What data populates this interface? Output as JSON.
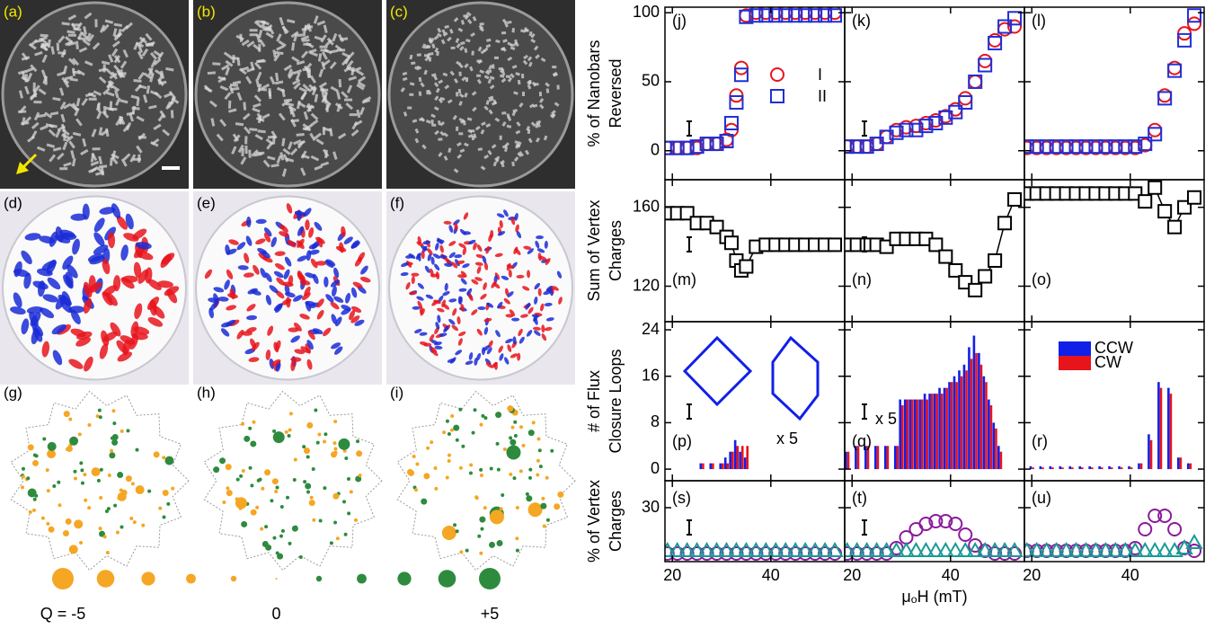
{
  "images": {
    "labels": [
      "(a)",
      "(b)",
      "(c)",
      "(d)",
      "(e)",
      "(f)"
    ]
  },
  "maps": {
    "labels": [
      "(g)",
      "(h)",
      "(i)"
    ],
    "legend": {
      "q": [
        -5,
        -4,
        -3,
        -2,
        -1,
        0,
        1,
        2,
        3,
        4,
        5
      ],
      "labels": [
        "Q = -5",
        "0",
        "+5"
      ]
    }
  },
  "chart_data": [
    {
      "type": "scatter",
      "label": "(j)",
      "ylabel": [
        "% of Nanobars",
        "Reversed"
      ],
      "x": [
        19,
        21,
        23,
        25,
        27,
        29,
        31,
        32,
        33,
        34,
        35,
        37,
        39,
        41,
        43,
        45,
        47,
        49,
        51,
        53
      ],
      "series": [
        {
          "name": "I",
          "color": "#e8141c",
          "marker": "circle",
          "values": [
            2,
            2,
            2,
            2,
            5,
            5,
            8,
            15,
            40,
            60,
            98,
            100,
            100,
            100,
            100,
            100,
            100,
            100,
            100,
            100
          ]
        },
        {
          "name": "II",
          "color": "#1f2fd6",
          "marker": "square",
          "values": [
            2,
            2,
            2,
            3,
            5,
            5,
            7,
            20,
            35,
            55,
            97,
            98,
            98,
            98,
            98,
            98,
            98,
            98,
            98,
            98
          ]
        }
      ],
      "xlim": [
        18.5,
        55
      ],
      "xticks": [
        20,
        40
      ],
      "ylim": [
        -21,
        104
      ],
      "yticks": [
        0,
        50,
        100
      ]
    },
    {
      "type": "scatter",
      "label": "(k)",
      "x": [
        19,
        21,
        23,
        25,
        27,
        29,
        31,
        33,
        35,
        37,
        39,
        41,
        43,
        45,
        47,
        49,
        51,
        53
      ],
      "series": [
        {
          "color": "#e8141c",
          "marker": "circle",
          "values": [
            3,
            3,
            3,
            5,
            10,
            15,
            17,
            18,
            20,
            22,
            25,
            30,
            38,
            50,
            65,
            80,
            88,
            90
          ]
        },
        {
          "color": "#1f2fd6",
          "marker": "square",
          "values": [
            3,
            3,
            3,
            5,
            10,
            13,
            15,
            15,
            18,
            20,
            24,
            28,
            35,
            50,
            62,
            78,
            90,
            96
          ]
        }
      ],
      "xlim": [
        18.5,
        55
      ],
      "xticks": [
        20,
        40
      ],
      "ylim": [
        -21,
        104
      ],
      "yticks": [
        0,
        50,
        100
      ]
    },
    {
      "type": "scatter",
      "label": "(l)",
      "x": [
        19,
        21,
        23,
        25,
        27,
        29,
        31,
        33,
        35,
        37,
        39,
        41,
        43,
        45,
        47,
        49,
        51,
        53
      ],
      "series": [
        {
          "color": "#e8141c",
          "marker": "circle",
          "values": [
            2,
            2,
            2,
            2,
            2,
            2,
            2,
            2,
            2,
            2,
            2,
            2,
            4,
            15,
            40,
            60,
            85,
            92
          ]
        },
        {
          "color": "#1f2fd6",
          "marker": "square",
          "values": [
            3,
            3,
            3,
            3,
            3,
            3,
            3,
            3,
            3,
            3,
            3,
            3,
            5,
            12,
            38,
            58,
            80,
            98
          ]
        }
      ],
      "xlim": [
        18.5,
        55
      ],
      "xticks": [
        20,
        40
      ],
      "ylim": [
        -21,
        104
      ],
      "yticks": [
        0,
        50,
        100
      ]
    },
    {
      "type": "line",
      "label": "(m)",
      "ylabel": [
        "Sum of Vertex",
        "Charges"
      ],
      "x": [
        19,
        21,
        23,
        25,
        27,
        29,
        31,
        32,
        33,
        34,
        35,
        37,
        39,
        41,
        43,
        45,
        47,
        49,
        51,
        53
      ],
      "series": [
        {
          "color": "#000000",
          "marker": "square",
          "values": [
            157,
            157,
            157,
            152,
            152,
            150,
            145,
            142,
            133,
            128,
            130,
            140,
            141,
            141,
            141,
            141,
            141,
            141,
            141,
            141
          ]
        }
      ],
      "xlim": [
        18.5,
        55
      ],
      "xticks": [
        20,
        40
      ],
      "ylim": [
        102,
        174
      ],
      "yticks": [
        120,
        160
      ]
    },
    {
      "type": "line",
      "label": "(n)",
      "x": [
        19,
        21,
        23,
        25,
        27,
        29,
        31,
        33,
        35,
        37,
        39,
        41,
        43,
        45,
        47,
        49,
        51,
        53
      ],
      "series": [
        {
          "color": "#000000",
          "marker": "square",
          "values": [
            141,
            141,
            141,
            141,
            140,
            144,
            144,
            144,
            144,
            141,
            135,
            128,
            122,
            118,
            125,
            133,
            152,
            164
          ]
        }
      ],
      "xlim": [
        18.5,
        55
      ],
      "xticks": [
        20,
        40
      ],
      "ylim": [
        102,
        174
      ],
      "yticks": [
        120,
        160
      ]
    },
    {
      "type": "line",
      "label": "(o)",
      "x": [
        19,
        21,
        23,
        25,
        27,
        29,
        31,
        33,
        35,
        37,
        39,
        41,
        43,
        45,
        47,
        49,
        51,
        53
      ],
      "series": [
        {
          "color": "#000000",
          "marker": "square",
          "values": [
            167,
            167,
            167,
            167,
            167,
            167,
            167,
            167,
            167,
            167,
            167,
            167,
            163,
            170,
            158,
            150,
            160,
            165
          ]
        }
      ],
      "xlim": [
        18.5,
        55
      ],
      "xticks": [
        20,
        40
      ],
      "ylim": [
        102,
        174
      ],
      "yticks": [
        120,
        160
      ]
    },
    {
      "type": "bar",
      "label": "(p)",
      "ylabel": [
        "# of Flux",
        "Closure Loops"
      ],
      "annotation": "x 5",
      "x": [
        26,
        28,
        30,
        31,
        32,
        33,
        34,
        35
      ],
      "series": [
        {
          "color": "#1020e8",
          "values": [
            1,
            1,
            1,
            2,
            3,
            5,
            3,
            2
          ]
        },
        {
          "color": "#e8141c",
          "values": [
            1,
            1,
            1,
            1,
            3,
            4,
            4,
            4
          ]
        }
      ],
      "xlim": [
        18.5,
        55
      ],
      "xticks": [
        20,
        40
      ],
      "ylim": [
        -2,
        25.4
      ],
      "yticks": [
        0,
        8,
        16,
        24
      ]
    },
    {
      "type": "bar",
      "label": "(q)",
      "annotation": "x 5",
      "x": [
        19,
        21,
        23,
        25,
        27,
        29,
        30,
        31,
        32,
        33,
        34,
        35,
        36,
        37,
        38,
        39,
        40,
        41,
        42,
        43,
        44,
        45,
        46,
        47,
        48,
        49,
        50
      ],
      "series": [
        {
          "color": "#1020e8",
          "values": [
            3,
            4,
            4,
            4,
            4,
            4,
            12,
            12,
            12,
            12,
            12,
            13,
            13,
            13,
            14,
            14,
            15,
            16,
            17,
            18,
            21,
            23,
            20,
            16,
            12,
            8,
            4
          ]
        },
        {
          "color": "#e8141c",
          "values": [
            3,
            4,
            4,
            4,
            4,
            4,
            11,
            12,
            12,
            12,
            12,
            12,
            13,
            13,
            13,
            14,
            15,
            15,
            16,
            17,
            19,
            20,
            18,
            15,
            11,
            7,
            3
          ]
        }
      ],
      "xlim": [
        18.5,
        55
      ],
      "xticks": [
        20,
        40
      ],
      "ylim": [
        -2,
        25.4
      ],
      "yticks": [
        0,
        8,
        16,
        24
      ]
    },
    {
      "type": "bar",
      "label": "(r)",
      "legend": true,
      "x": [
        20,
        22,
        24,
        26,
        28,
        30,
        32,
        34,
        36,
        38,
        40,
        42,
        44,
        46,
        48,
        50,
        52
      ],
      "series": [
        {
          "name": "CCW",
          "color": "#1020e8",
          "values": [
            0.5,
            0.5,
            0.5,
            0.5,
            0.5,
            0.5,
            0.5,
            0.5,
            0.5,
            0.5,
            0.5,
            1,
            6,
            15,
            14,
            2,
            1
          ]
        },
        {
          "name": "CW",
          "color": "#e8141c",
          "values": [
            0.3,
            0.3,
            0.3,
            0.3,
            0.3,
            0.3,
            0.3,
            0.3,
            0.3,
            0.3,
            0.3,
            1,
            5,
            14,
            13,
            2,
            1
          ]
        }
      ],
      "xlim": [
        18.5,
        55
      ],
      "xticks": [
        20,
        40
      ],
      "ylim": [
        -2,
        25.4
      ],
      "yticks": [
        0,
        8,
        16,
        24
      ]
    },
    {
      "type": "scatter",
      "label": "(s)",
      "ylabel": [
        "% of Vertex",
        "Charges"
      ],
      "x": [
        19,
        21,
        23,
        25,
        27,
        29,
        31,
        33,
        35,
        37,
        39,
        41,
        43,
        45,
        47,
        49,
        51,
        53
      ],
      "series": [
        {
          "color": "#8b1a9b",
          "marker": "circle",
          "values": [
            13,
            13,
            13,
            13,
            13,
            13,
            13,
            13,
            13,
            13,
            13,
            13,
            13,
            13,
            13,
            13,
            13,
            13
          ]
        },
        {
          "color": "#1a9a96",
          "marker": "triangle",
          "values": [
            14,
            14,
            14,
            14,
            14,
            14,
            14,
            14,
            14,
            14,
            14,
            14,
            14,
            14,
            14,
            14,
            14,
            14
          ]
        }
      ],
      "xlim": [
        18.5,
        55
      ],
      "xticks": [
        20,
        40
      ],
      "ylim": [
        10,
        40
      ],
      "yticks": [
        30
      ]
    },
    {
      "type": "scatter",
      "label": "(t)",
      "xlabel": "μₒH (mT)",
      "x": [
        19,
        21,
        23,
        25,
        27,
        29,
        31,
        33,
        35,
        37,
        39,
        41,
        43,
        45,
        47,
        49,
        51,
        53
      ],
      "series": [
        {
          "color": "#8b1a9b",
          "marker": "circle",
          "values": [
            13,
            13,
            13,
            13,
            13,
            15,
            19,
            22,
            24,
            25,
            25,
            24,
            20,
            16,
            14,
            13,
            13,
            13
          ]
        },
        {
          "color": "#1a9a96",
          "marker": "triangle",
          "values": [
            14,
            14,
            14,
            14,
            14,
            14,
            14,
            14,
            14,
            14,
            14,
            14,
            14,
            14,
            14,
            14,
            14,
            14
          ]
        }
      ],
      "xlim": [
        18.5,
        55
      ],
      "xticks": [
        20,
        40
      ],
      "ylim": [
        10,
        40
      ],
      "yticks": [
        30
      ]
    },
    {
      "type": "scatter",
      "label": "(u)",
      "x": [
        19,
        21,
        23,
        25,
        27,
        29,
        31,
        33,
        35,
        37,
        39,
        41,
        43,
        45,
        47,
        49,
        51,
        53
      ],
      "series": [
        {
          "color": "#8b1a9b",
          "marker": "circle",
          "values": [
            14,
            14,
            14,
            14,
            14,
            14,
            14,
            14,
            14,
            14,
            14,
            15,
            22,
            27,
            27,
            22,
            15,
            14
          ]
        },
        {
          "color": "#1a9a96",
          "marker": "triangle",
          "values": [
            14,
            14,
            14,
            14,
            14,
            14,
            14,
            14,
            14,
            14,
            14,
            14,
            14,
            14,
            14,
            14,
            15,
            17
          ]
        }
      ],
      "xlim": [
        18.5,
        55
      ],
      "xticks": [
        20,
        40
      ],
      "ylim": [
        10,
        40
      ],
      "yticks": [
        30
      ]
    }
  ]
}
